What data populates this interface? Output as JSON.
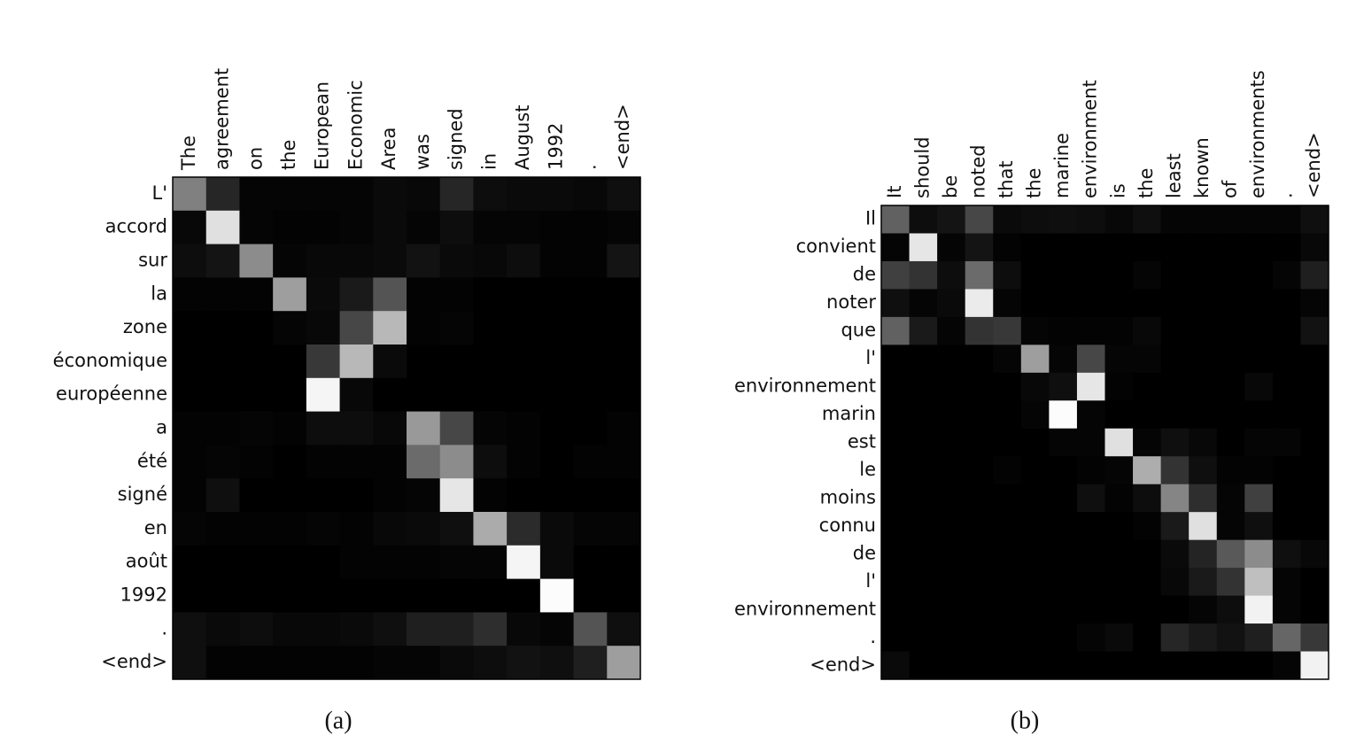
{
  "chart_data": [
    {
      "type": "heatmap",
      "title": "(a)",
      "x": [
        "The",
        "agreement",
        "on",
        "the",
        "European",
        "Economic",
        "Area",
        "was",
        "signed",
        "in",
        "August",
        "1992",
        ".",
        "<end>"
      ],
      "y": [
        "L'",
        "accord",
        "sur",
        "la",
        "zone",
        "économique",
        "européenne",
        "a",
        "été",
        "signé",
        "en",
        "août",
        "1992",
        ".",
        "<end>"
      ],
      "values": [
        [
          0.5,
          0.15,
          0.02,
          0.02,
          0.02,
          0.02,
          0.04,
          0.03,
          0.15,
          0.05,
          0.04,
          0.04,
          0.03,
          0.06
        ],
        [
          0.03,
          0.88,
          0.02,
          0.01,
          0.01,
          0.02,
          0.04,
          0.02,
          0.05,
          0.02,
          0.02,
          0.01,
          0.01,
          0.02
        ],
        [
          0.05,
          0.08,
          0.55,
          0.02,
          0.03,
          0.03,
          0.04,
          0.07,
          0.04,
          0.03,
          0.05,
          0.01,
          0.01,
          0.08
        ],
        [
          0.01,
          0.01,
          0.01,
          0.62,
          0.04,
          0.1,
          0.33,
          0.01,
          0.01,
          0,
          0,
          0,
          0,
          0
        ],
        [
          0,
          0,
          0,
          0.02,
          0.03,
          0.28,
          0.72,
          0.01,
          0.02,
          0,
          0,
          0,
          0,
          0
        ],
        [
          0,
          0,
          0,
          0,
          0.22,
          0.72,
          0.04,
          0,
          0,
          0,
          0,
          0,
          0,
          0
        ],
        [
          0,
          0,
          0,
          0,
          0.96,
          0.03,
          0,
          0,
          0,
          0,
          0,
          0,
          0,
          0
        ],
        [
          0.01,
          0.01,
          0.02,
          0.01,
          0.05,
          0.05,
          0.03,
          0.6,
          0.28,
          0.02,
          0.01,
          0,
          0,
          0.01
        ],
        [
          0.01,
          0.02,
          0.01,
          0,
          0.01,
          0.01,
          0.01,
          0.42,
          0.55,
          0.05,
          0.01,
          0,
          0.01,
          0.01
        ],
        [
          0.01,
          0.06,
          0,
          0,
          0,
          0,
          0.01,
          0.02,
          0.9,
          0.01,
          0,
          0,
          0,
          0
        ],
        [
          0.02,
          0.01,
          0.01,
          0.01,
          0.02,
          0.01,
          0.03,
          0.04,
          0.06,
          0.67,
          0.17,
          0.04,
          0.02,
          0.02
        ],
        [
          0,
          0,
          0,
          0,
          0,
          0.01,
          0.01,
          0.01,
          0.02,
          0.02,
          0.96,
          0.04,
          0,
          0
        ],
        [
          0,
          0,
          0,
          0,
          0,
          0,
          0,
          0,
          0,
          0,
          0,
          0.99,
          0,
          0
        ],
        [
          0.06,
          0.04,
          0.05,
          0.03,
          0.03,
          0.04,
          0.06,
          0.12,
          0.12,
          0.18,
          0.03,
          0.02,
          0.33,
          0.06
        ],
        [
          0.06,
          0.01,
          0.01,
          0.01,
          0.01,
          0.01,
          0.02,
          0.02,
          0.04,
          0.05,
          0.07,
          0.06,
          0.12,
          0.62
        ]
      ]
    },
    {
      "type": "heatmap",
      "title": "(b)",
      "x": [
        "It",
        "should",
        "be",
        "noted",
        "that",
        "the",
        "marine",
        "environment",
        "is",
        "the",
        "least",
        "known",
        "of",
        "environments",
        ".",
        "<end>"
      ],
      "y": [
        "Il",
        "convient",
        "de",
        "noter",
        "que",
        "l'",
        "environnement",
        "marin",
        "est",
        "le",
        "moins",
        "connu",
        "de",
        "l'",
        "environnement",
        ".",
        "<end>"
      ],
      "values": [
        [
          0.38,
          0.05,
          0.08,
          0.28,
          0.04,
          0.05,
          0.06,
          0.05,
          0.03,
          0.06,
          0.02,
          0.02,
          0.02,
          0.02,
          0.02,
          0.06
        ],
        [
          0.02,
          0.9,
          0.02,
          0.08,
          0.01,
          0,
          0,
          0,
          0,
          0,
          0,
          0,
          0,
          0,
          0,
          0.03
        ],
        [
          0.25,
          0.2,
          0.05,
          0.42,
          0.05,
          0,
          0,
          0,
          0,
          0.02,
          0,
          0,
          0,
          0,
          0.02,
          0.12
        ],
        [
          0.06,
          0.02,
          0.04,
          0.92,
          0.02,
          0,
          0,
          0,
          0,
          0,
          0,
          0,
          0,
          0,
          0,
          0.02
        ],
        [
          0.38,
          0.1,
          0.02,
          0.2,
          0.22,
          0.02,
          0.01,
          0.01,
          0.01,
          0.03,
          0,
          0,
          0,
          0,
          0,
          0.07
        ],
        [
          0,
          0,
          0,
          0,
          0.02,
          0.62,
          0.02,
          0.28,
          0.02,
          0.02,
          0,
          0,
          0,
          0,
          0,
          0
        ],
        [
          0,
          0,
          0,
          0,
          0,
          0.03,
          0.06,
          0.9,
          0.01,
          0,
          0,
          0,
          0,
          0.03,
          0,
          0
        ],
        [
          0,
          0,
          0,
          0,
          0,
          0.02,
          0.99,
          0.02,
          0,
          0,
          0,
          0,
          0,
          0,
          0,
          0
        ],
        [
          0,
          0,
          0,
          0,
          0,
          0,
          0.02,
          0.02,
          0.88,
          0.02,
          0.06,
          0.03,
          0,
          0.02,
          0.02,
          0
        ],
        [
          0,
          0,
          0,
          0,
          0.01,
          0,
          0,
          0.01,
          0.02,
          0.68,
          0.2,
          0.06,
          0.01,
          0.01,
          0,
          0
        ],
        [
          0,
          0,
          0,
          0,
          0,
          0,
          0,
          0.06,
          0.01,
          0.05,
          0.52,
          0.18,
          0.02,
          0.25,
          0,
          0
        ],
        [
          0,
          0,
          0,
          0,
          0,
          0,
          0,
          0,
          0,
          0.01,
          0.1,
          0.88,
          0.02,
          0.06,
          0,
          0
        ],
        [
          0,
          0,
          0,
          0,
          0,
          0,
          0,
          0,
          0,
          0,
          0.04,
          0.14,
          0.35,
          0.55,
          0.06,
          0.03
        ],
        [
          0,
          0,
          0,
          0,
          0,
          0,
          0,
          0,
          0,
          0,
          0.03,
          0.1,
          0.2,
          0.75,
          0.02,
          0
        ],
        [
          0,
          0,
          0,
          0,
          0,
          0,
          0,
          0,
          0,
          0,
          0,
          0.02,
          0.05,
          0.95,
          0.02,
          0
        ],
        [
          0,
          0,
          0,
          0,
          0,
          0,
          0,
          0.02,
          0.04,
          0,
          0.15,
          0.1,
          0.07,
          0.12,
          0.4,
          0.22
        ],
        [
          0.04,
          0,
          0,
          0,
          0,
          0,
          0,
          0,
          0,
          0,
          0,
          0,
          0,
          0,
          0.02,
          0.95
        ]
      ]
    }
  ]
}
